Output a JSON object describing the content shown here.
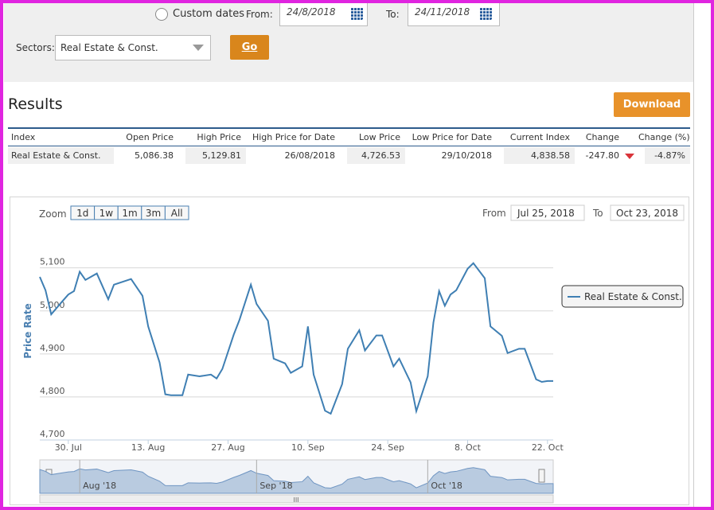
{
  "filters": {
    "custom_dates": "Custom dates",
    "from_label": "From:",
    "from_value": "24/8/2018",
    "to_label": "To:",
    "to_value": "24/11/2018",
    "sectors_label": "Sectors:",
    "sector_value": "Real Estate & Const.",
    "go": "Go"
  },
  "results": {
    "title": "Results",
    "download": "Download",
    "table": {
      "headers": [
        "Index",
        "Open Price",
        "High Price",
        "High Price for Date",
        "Low Price",
        "Low Price for Date",
        "Current Index",
        "Change",
        "Change (%)"
      ],
      "rows": [
        [
          "Real Estate & Const.",
          "5,086.38",
          "5,129.81",
          "26/08/2018",
          "4,726.53",
          "29/10/2018",
          "4,838.58",
          "-247.80",
          "-4.87%"
        ]
      ]
    }
  },
  "chart_data": {
    "type": "line",
    "zoom_label": "Zoom",
    "zoom_buttons": [
      "1d",
      "1w",
      "1m",
      "3m",
      "All"
    ],
    "range_from_label": "From",
    "range_from": "Jul 25, 2018",
    "range_to_label": "To",
    "range_to": "Oct 23, 2018",
    "y_label": "Price Rate",
    "legend_position": "right",
    "grid": true,
    "x": [
      "2018-07-25",
      "2018-07-26",
      "2018-07-27",
      "2018-07-29",
      "2018-07-30",
      "2018-07-31",
      "2018-08-01",
      "2018-08-02",
      "2018-08-04",
      "2018-08-06",
      "2018-08-07",
      "2018-08-10",
      "2018-08-12",
      "2018-08-13",
      "2018-08-15",
      "2018-08-16",
      "2018-08-17",
      "2018-08-19",
      "2018-08-20",
      "2018-08-22",
      "2018-08-24",
      "2018-08-25",
      "2018-08-26",
      "2018-08-28",
      "2018-08-29",
      "2018-08-31",
      "2018-09-01",
      "2018-09-03",
      "2018-09-04",
      "2018-09-06",
      "2018-09-07",
      "2018-09-09",
      "2018-09-10",
      "2018-09-11",
      "2018-09-13",
      "2018-09-14",
      "2018-09-16",
      "2018-09-17",
      "2018-09-19",
      "2018-09-20",
      "2018-09-22",
      "2018-09-23",
      "2018-09-25",
      "2018-09-26",
      "2018-09-28",
      "2018-09-29",
      "2018-10-01",
      "2018-10-02",
      "2018-10-03",
      "2018-10-04",
      "2018-10-05",
      "2018-10-06",
      "2018-10-08",
      "2018-10-09",
      "2018-10-11",
      "2018-10-12",
      "2018-10-14",
      "2018-10-15",
      "2018-10-17",
      "2018-10-18",
      "2018-10-20",
      "2018-10-21",
      "2018-10-22",
      "2018-10-23"
    ],
    "series": [
      {
        "name": "Real Estate & Const.",
        "color": "#3f7fb3",
        "values": [
          5079,
          5048,
          4992,
          5023,
          5038,
          5046,
          5091,
          5072,
          5087,
          5027,
          5061,
          5074,
          5035,
          4964,
          4880,
          4806,
          4804,
          4804,
          4852,
          4848,
          4852,
          4843,
          4865,
          4945,
          4979,
          5061,
          5016,
          4977,
          4889,
          4878,
          4856,
          4871,
          4964,
          4852,
          4768,
          4761,
          4830,
          4912,
          4955,
          4908,
          4943,
          4943,
          4871,
          4889,
          4834,
          4767,
          4848,
          4973,
          5046,
          5012,
          5038,
          5048,
          5098,
          5111,
          5076,
          4964,
          4942,
          4902,
          4912,
          4912,
          4841,
          4835,
          4837,
          4837
        ]
      }
    ],
    "xlim": [
      "2018-07-25",
      "2018-10-23"
    ],
    "xticks": [
      {
        "value": "2018-07-30",
        "label": "30. Jul"
      },
      {
        "value": "2018-08-13",
        "label": "13. Aug"
      },
      {
        "value": "2018-08-27",
        "label": "27. Aug"
      },
      {
        "value": "2018-09-10",
        "label": "10. Sep"
      },
      {
        "value": "2018-09-24",
        "label": "24. Sep"
      },
      {
        "value": "2018-10-08",
        "label": "8. Oct"
      },
      {
        "value": "2018-10-22",
        "label": "22. Oct"
      }
    ],
    "ylim": [
      4700,
      5190
    ],
    "yticks": [
      {
        "value": 4700,
        "label": "4,700"
      },
      {
        "value": 4800,
        "label": "4,800"
      },
      {
        "value": 4900,
        "label": "4,900"
      },
      {
        "value": 5000,
        "label": "5,000"
      },
      {
        "value": 5100,
        "label": "5,100"
      }
    ],
    "navigator_ticks": [
      {
        "value": "2018-08-01",
        "label": "Aug '18"
      },
      {
        "value": "2018-09-01",
        "label": "Sep '18"
      },
      {
        "value": "2018-10-01",
        "label": "Oct '18"
      }
    ]
  }
}
